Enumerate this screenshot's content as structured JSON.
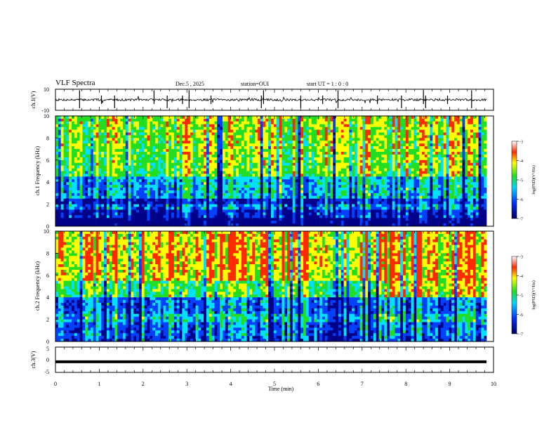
{
  "header": {
    "title": "VLF Spectra",
    "date": "Dec.5 , 2025",
    "station": "station=OUI",
    "start": "start UT = 1 : 0 : 0"
  },
  "colors": {
    "red": "#ff2a00",
    "yellow": "#ffff00",
    "green": "#22dd22",
    "cyan": "#00e0ff",
    "blue": "#0040ff",
    "navy": "#000088"
  },
  "chart_data": [
    {
      "type": "line",
      "name": "ch1-waveform",
      "ylabel": "ch.1(V)",
      "ylim": [
        -10,
        10
      ],
      "yticks": [
        "10",
        "-10"
      ],
      "baseline": 0,
      "spikes_min": [
        0.55,
        1.05,
        1.35,
        2.25,
        2.55,
        2.9,
        3.05,
        3.55,
        4.7,
        4.75,
        5.6,
        6.1,
        6.45,
        7.35,
        7.9,
        8.4,
        8.45,
        8.95,
        9.5
      ]
    },
    {
      "type": "heatmap",
      "name": "ch1-spectrogram",
      "ylabel": "ch.1 Frequency (kHz)",
      "ylim": [
        0,
        10
      ],
      "yticks": [
        "0",
        "2",
        "4",
        "6",
        "8",
        "10"
      ],
      "colorbar": {
        "label": "log(PSD)(V²/Hz)",
        "range": [
          -7,
          -3
        ],
        "ticks": [
          "-3",
          "-4",
          "-5",
          "-6",
          "-7"
        ]
      }
    },
    {
      "type": "heatmap",
      "name": "ch2-spectrogram",
      "ylabel": "ch.2 Frequency (kHz)",
      "ylim": [
        0,
        10
      ],
      "yticks": [
        "0",
        "2",
        "4",
        "6",
        "8",
        "10"
      ],
      "colorbar": {
        "label": "log(PSD)(V²/Hz)",
        "range": [
          -7,
          -3
        ],
        "ticks": [
          "-3",
          "-4",
          "-5",
          "-6",
          "-7"
        ]
      }
    },
    {
      "type": "line",
      "name": "ch3-waveform",
      "ylabel": "ch.3(V)",
      "ylim": [
        -5,
        5
      ],
      "yticks": [
        "5",
        "0",
        "-5"
      ],
      "baseline": -0.8
    }
  ],
  "xaxis": {
    "label": "Time (min)",
    "range": [
      0,
      10
    ],
    "ticks": [
      "0",
      "1",
      "2",
      "3",
      "4",
      "5",
      "6",
      "7",
      "8",
      "9",
      "10"
    ]
  }
}
